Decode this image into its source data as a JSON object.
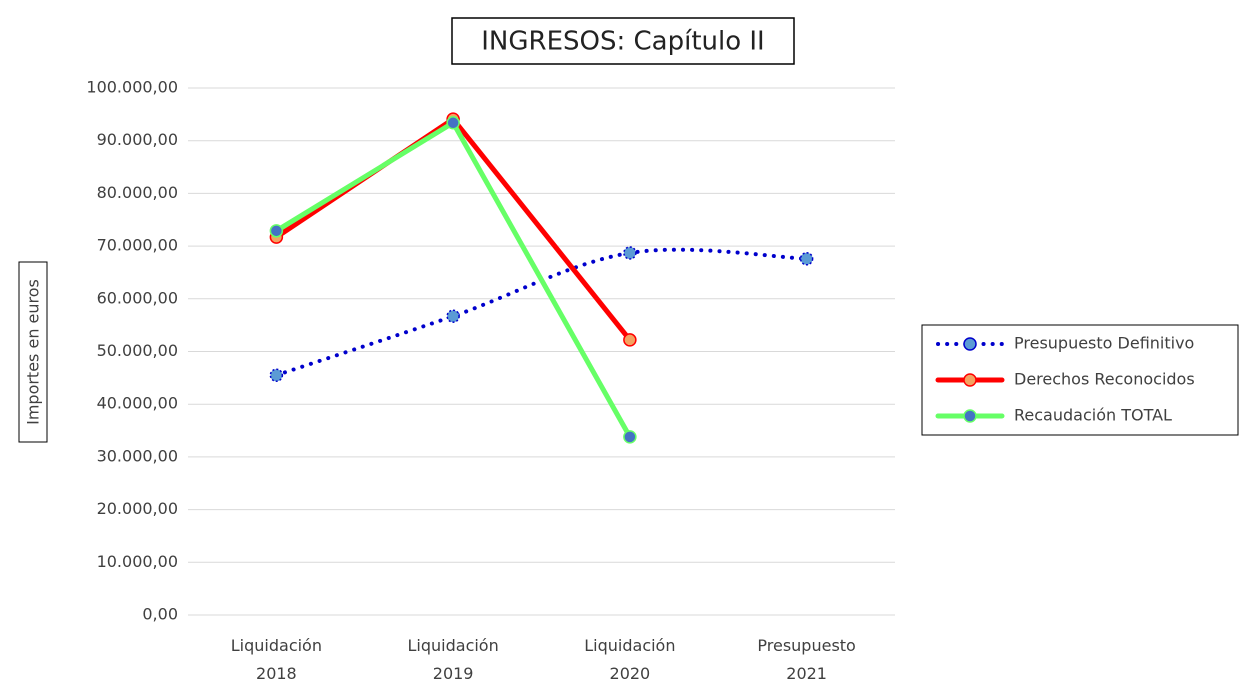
{
  "chart_data": {
    "type": "line",
    "title": "INGRESOS: Capítulo II",
    "y_label": "Importes en euros",
    "categories": [
      "Liquidación 2018",
      "Liquidación 2019",
      "Liquidación 2020",
      "Presupuesto 2021"
    ],
    "series": [
      {
        "name": "Presupuesto Definitivo",
        "color": "#0000cc",
        "marker_color": "#5b9bd5",
        "dash": "dotted",
        "smooth": true,
        "values": [
          45500,
          56700,
          68700,
          67600
        ]
      },
      {
        "name": "Derechos Reconocidos",
        "color": "#ff0000",
        "marker_color": "#f4a261",
        "values": [
          71700,
          94100,
          52200,
          null
        ]
      },
      {
        "name": "Recaudación TOTAL",
        "color": "#66ff66",
        "marker_color": "#4472c4",
        "values": [
          72900,
          93400,
          33800,
          null
        ]
      }
    ],
    "ylim": [
      0,
      100000
    ],
    "yticks": [
      {
        "value": 0,
        "label": "0,00"
      },
      {
        "value": 10000,
        "label": "10.000,00"
      },
      {
        "value": 20000,
        "label": "20.000,00"
      },
      {
        "value": 30000,
        "label": "30.000,00"
      },
      {
        "value": 40000,
        "label": "40.000,00"
      },
      {
        "value": 50000,
        "label": "50.000,00"
      },
      {
        "value": 60000,
        "label": "60.000,00"
      },
      {
        "value": 70000,
        "label": "70.000,00"
      },
      {
        "value": 80000,
        "label": "80.000,00"
      },
      {
        "value": 90000,
        "label": "90.000,00"
      },
      {
        "value": 100000,
        "label": "100.000,00"
      }
    ],
    "grid": true,
    "legend": "right"
  }
}
